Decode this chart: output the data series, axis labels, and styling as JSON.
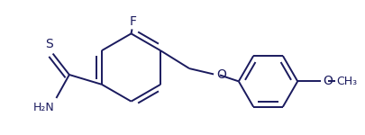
{
  "line_color": "#1a1a5e",
  "bg_color": "#ffffff",
  "bond_lw": 1.4,
  "figsize": [
    4.05,
    1.5
  ],
  "dpi": 100,
  "xlim": [
    0,
    4.05
  ],
  "ylim": [
    0,
    1.5
  ]
}
